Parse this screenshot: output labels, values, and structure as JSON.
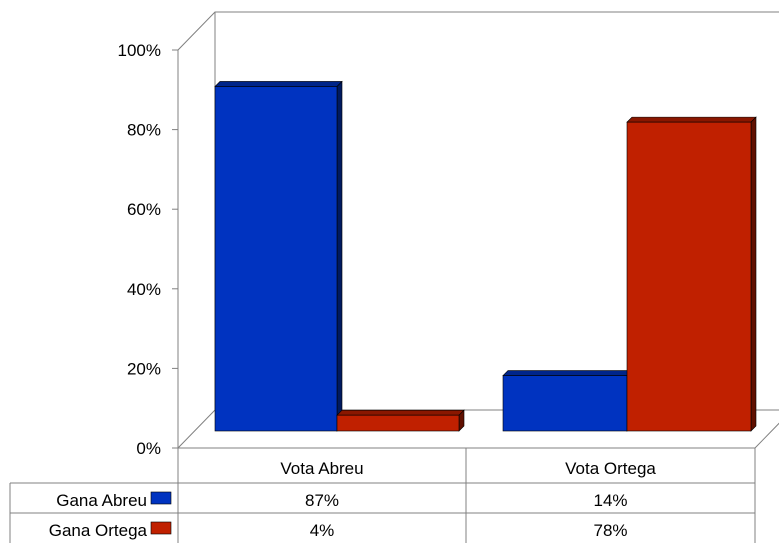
{
  "chart_data": {
    "type": "bar",
    "categories": [
      "Vota Abreu",
      "Vota Ortega"
    ],
    "series": [
      {
        "name": "Gana Abreu",
        "color": "#0033c0",
        "values": [
          87,
          14
        ],
        "labels": [
          "87%",
          "14%"
        ]
      },
      {
        "name": "Gana Ortega",
        "color": "#c02000",
        "values": [
          4,
          78
        ],
        "labels": [
          "4%",
          "78%"
        ]
      }
    ],
    "ylim": [
      0,
      100
    ],
    "yticks": [
      "0%",
      "20%",
      "40%",
      "60%",
      "80%",
      "100%"
    ],
    "title": "",
    "xlabel": "",
    "ylabel": "",
    "grid": false,
    "legend": "data table below chart",
    "style": "3d"
  }
}
